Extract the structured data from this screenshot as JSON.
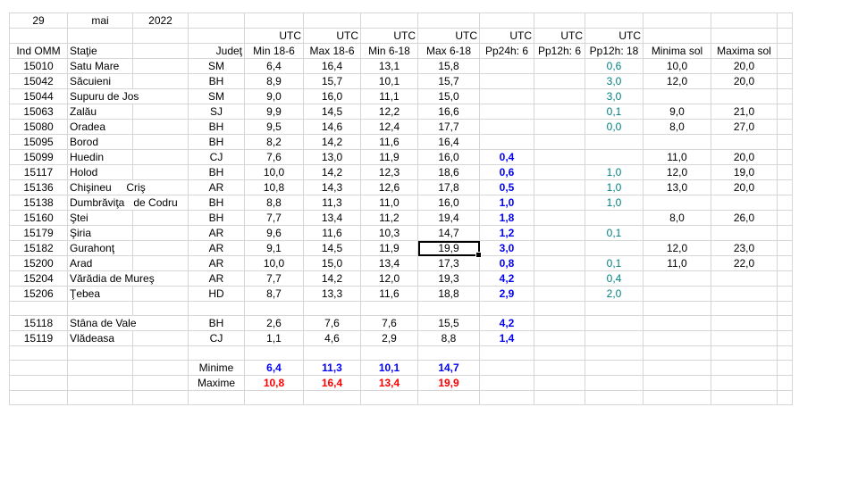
{
  "date": {
    "day": "29",
    "month": "mai",
    "year": "2022"
  },
  "utc_labels": [
    "UTC",
    "UTC",
    "UTC",
    "UTC",
    "UTC",
    "UTC",
    "UTC"
  ],
  "columns": [
    "Ind OMM",
    "Staţie",
    "Judeţ",
    "Min 18-6",
    "Max 18-6",
    "Min 6-18",
    "Max 6-18",
    "Pp24h: 6",
    "Pp12h: 6",
    "Pp12h: 18",
    "Minima sol",
    "Maxima sol"
  ],
  "stations": [
    [
      "15010",
      "Satu Mare",
      "SM",
      "6,4",
      "16,4",
      "13,1",
      "15,8",
      null,
      null,
      "0,6",
      "10,0",
      "20,0"
    ],
    [
      "15042",
      "Săcuieni",
      "BH",
      "8,9",
      "15,7",
      "10,1",
      "15,7",
      null,
      null,
      "3,0",
      "12,0",
      "20,0"
    ],
    [
      "15044",
      "Supuru de Jos",
      "SM",
      "9,0",
      "16,0",
      "11,1",
      "15,0",
      null,
      null,
      "3,0",
      null,
      null
    ],
    [
      "15063",
      "Zalău",
      "SJ",
      "9,9",
      "14,5",
      "12,2",
      "16,6",
      null,
      null,
      "0,1",
      "9,0",
      "21,0"
    ],
    [
      "15080",
      "Oradea",
      "BH",
      "9,5",
      "14,6",
      "12,4",
      "17,7",
      null,
      null,
      "0,0",
      "8,0",
      "27,0"
    ],
    [
      "15095",
      "Borod",
      "BH",
      "8,2",
      "14,2",
      "11,6",
      "16,4",
      null,
      null,
      null,
      null,
      null
    ],
    [
      "15099",
      "Huedin",
      "CJ",
      "7,6",
      "13,0",
      "11,9",
      "16,0",
      "0,4",
      null,
      null,
      "11,0",
      "20,0"
    ],
    [
      "15117",
      "Holod",
      "BH",
      "10,0",
      "14,2",
      "12,3",
      "18,6",
      "0,6",
      null,
      "1,0",
      "12,0",
      "19,0"
    ],
    [
      "15136",
      "Chişineu     Criş",
      "AR",
      "10,8",
      "14,3",
      "12,6",
      "17,8",
      "0,5",
      null,
      "1,0",
      "13,0",
      "20,0"
    ],
    [
      "15138",
      "Dumbrăviţa   de Codru",
      "BH",
      "8,8",
      "11,3",
      "11,0",
      "16,0",
      "1,0",
      null,
      "1,0",
      null,
      null
    ],
    [
      "15160",
      "Ştei",
      "BH",
      "7,7",
      "13,4",
      "11,2",
      "19,4",
      "1,8",
      null,
      null,
      "8,0",
      "26,0"
    ],
    [
      "15179",
      "Şiria",
      "AR",
      "9,6",
      "11,6",
      "10,3",
      "14,7",
      "1,2",
      null,
      "0,1",
      null,
      null
    ],
    [
      "15182",
      "Gurahonţ",
      "AR",
      "9,1",
      "14,5",
      "11,9",
      "19,9",
      "3,0",
      null,
      null,
      "12,0",
      "23,0"
    ],
    [
      "15200",
      "Arad",
      "AR",
      "10,0",
      "15,0",
      "13,4",
      "17,3",
      "0,8",
      null,
      "0,1",
      "11,0",
      "22,0"
    ],
    [
      "15204",
      "Vărădia de Mureş",
      "AR",
      "7,7",
      "14,2",
      "12,0",
      "19,3",
      "4,2",
      null,
      "0,4",
      null,
      null
    ],
    [
      "15206",
      "Ţebea",
      "HD",
      "8,7",
      "13,3",
      "11,6",
      "18,8",
      "2,9",
      null,
      "2,0",
      null,
      null
    ]
  ],
  "mountain_stations": [
    [
      "15118",
      "Stâna de Vale",
      "BH",
      "2,6",
      "7,6",
      "7,6",
      "15,5",
      "4,2",
      null,
      null,
      null,
      null
    ],
    [
      "15119",
      "Vlădeasa",
      "CJ",
      "1,1",
      "4,6",
      "2,9",
      "8,8",
      "1,4",
      null,
      null,
      null,
      null
    ]
  ],
  "summary": {
    "minime": {
      "label": "Minime",
      "values": [
        "6,4",
        "11,3",
        "10,1",
        "14,7"
      ]
    },
    "maxime": {
      "label": "Maxime",
      "values": [
        "10,8",
        "16,4",
        "13,4",
        "19,9"
      ]
    }
  }
}
